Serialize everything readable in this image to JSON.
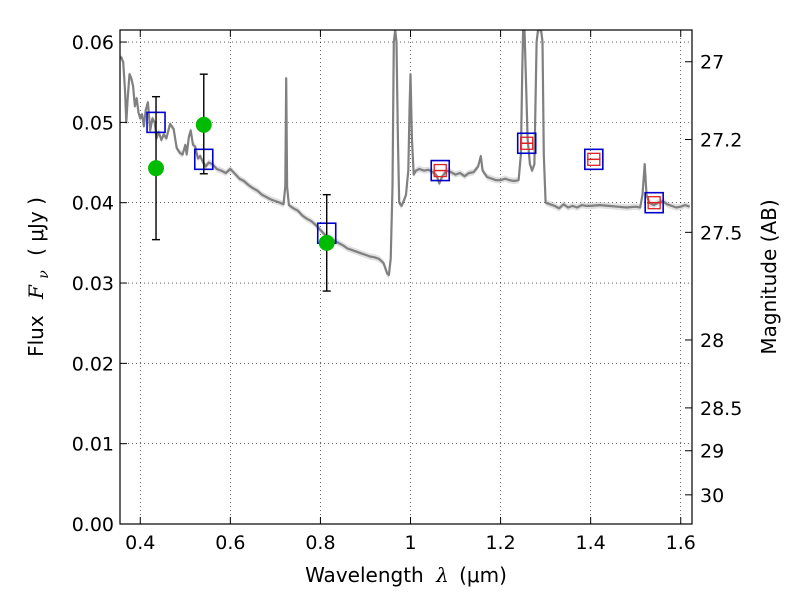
{
  "chart_data": {
    "type": "line",
    "title": "",
    "xlabel_prefix": "Wavelength",
    "xlabel_symbol": "λ",
    "xlabel_unit": "(μm)",
    "ylabel_prefix": "Flux",
    "ylabel_symbol": "F",
    "ylabel_subscript": "ν",
    "ylabel_unit": "( μJy )",
    "y2label": "Magnitude (AB)",
    "xlim": [
      0.355,
      1.625
    ],
    "ylim": [
      0.0,
      0.0615
    ],
    "grid": true,
    "x_ticks": [
      0.4,
      0.6,
      0.8,
      1.0,
      1.2,
      1.4,
      1.6
    ],
    "x_tick_labels": [
      "0.4",
      "0.6",
      "0.8",
      "1",
      "1.2",
      "1.4",
      "1.6"
    ],
    "y_ticks": [
      0.0,
      0.01,
      0.02,
      0.03,
      0.04,
      0.05,
      0.06
    ],
    "y_tick_labels": [
      "0.00",
      "0.01",
      "0.02",
      "0.03",
      "0.04",
      "0.05",
      "0.06"
    ],
    "y2_ticks": [
      27,
      27.2,
      27.5,
      28,
      28.5,
      29,
      30
    ],
    "y2_tick_labels": [
      "27",
      "27.2",
      "27.5",
      "28",
      "28.5",
      "29",
      "30"
    ],
    "colors": {
      "model": "#808080",
      "model_band": "#bbbbbb",
      "model_photometry": "#0000cc",
      "observed_limits": "#dd2222",
      "observed": "#00bb00",
      "errorbar": "#000000"
    },
    "model_spectrum": [
      [
        0.357,
        0.0582
      ],
      [
        0.362,
        0.0575
      ],
      [
        0.366,
        0.054
      ],
      [
        0.369,
        0.05
      ],
      [
        0.372,
        0.053
      ],
      [
        0.376,
        0.056
      ],
      [
        0.38,
        0.0555
      ],
      [
        0.384,
        0.0545
      ],
      [
        0.388,
        0.052
      ],
      [
        0.392,
        0.053
      ],
      [
        0.396,
        0.0512
      ],
      [
        0.4,
        0.0505
      ],
      [
        0.404,
        0.051
      ],
      [
        0.408,
        0.0495
      ],
      [
        0.412,
        0.0515
      ],
      [
        0.417,
        0.0525
      ],
      [
        0.422,
        0.049
      ],
      [
        0.427,
        0.0505
      ],
      [
        0.432,
        0.05
      ],
      [
        0.436,
        0.048
      ],
      [
        0.441,
        0.0488
      ],
      [
        0.447,
        0.0478
      ],
      [
        0.452,
        0.0485
      ],
      [
        0.458,
        0.048
      ],
      [
        0.466,
        0.0498
      ],
      [
        0.474,
        0.0492
      ],
      [
        0.481,
        0.0468
      ],
      [
        0.488,
        0.0462
      ],
      [
        0.494,
        0.046
      ],
      [
        0.5,
        0.0472
      ],
      [
        0.503,
        0.046
      ],
      [
        0.508,
        0.0482
      ],
      [
        0.512,
        0.049
      ],
      [
        0.517,
        0.0472
      ],
      [
        0.522,
        0.047
      ],
      [
        0.528,
        0.0455
      ],
      [
        0.533,
        0.0458
      ],
      [
        0.538,
        0.0452
      ],
      [
        0.545,
        0.0445
      ],
      [
        0.552,
        0.045
      ],
      [
        0.56,
        0.0448
      ],
      [
        0.57,
        0.0442
      ],
      [
        0.58,
        0.044
      ],
      [
        0.59,
        0.0437
      ],
      [
        0.6,
        0.0442
      ],
      [
        0.61,
        0.0436
      ],
      [
        0.62,
        0.043
      ],
      [
        0.63,
        0.0427
      ],
      [
        0.64,
        0.0422
      ],
      [
        0.65,
        0.0418
      ],
      [
        0.66,
        0.0415
      ],
      [
        0.67,
        0.041
      ],
      [
        0.68,
        0.0407
      ],
      [
        0.69,
        0.0404
      ],
      [
        0.7,
        0.0402
      ],
      [
        0.71,
        0.04
      ],
      [
        0.718,
        0.0398
      ],
      [
        0.722,
        0.042
      ],
      [
        0.724,
        0.0555
      ],
      [
        0.726,
        0.042
      ],
      [
        0.73,
        0.0397
      ],
      [
        0.74,
        0.0393
      ],
      [
        0.75,
        0.039
      ],
      [
        0.76,
        0.0384
      ],
      [
        0.77,
        0.038
      ],
      [
        0.78,
        0.0377
      ],
      [
        0.79,
        0.0372
      ],
      [
        0.8,
        0.0366
      ],
      [
        0.81,
        0.036
      ],
      [
        0.82,
        0.0357
      ],
      [
        0.83,
        0.0353
      ],
      [
        0.84,
        0.035
      ],
      [
        0.85,
        0.0347
      ],
      [
        0.86,
        0.0343
      ],
      [
        0.87,
        0.0341
      ],
      [
        0.88,
        0.0339
      ],
      [
        0.89,
        0.0337
      ],
      [
        0.9,
        0.0335
      ],
      [
        0.91,
        0.0333
      ],
      [
        0.92,
        0.0332
      ],
      [
        0.93,
        0.033
      ],
      [
        0.94,
        0.0325
      ],
      [
        0.948,
        0.0312
      ],
      [
        0.952,
        0.031
      ],
      [
        0.956,
        0.033
      ],
      [
        0.96,
        0.042
      ],
      [
        0.963,
        0.06
      ],
      [
        0.966,
        0.0615
      ],
      [
        0.969,
        0.06
      ],
      [
        0.972,
        0.048
      ],
      [
        0.975,
        0.04
      ],
      [
        0.98,
        0.0396
      ],
      [
        0.985,
        0.0402
      ],
      [
        0.99,
        0.041
      ],
      [
        0.995,
        0.044
      ],
      [
        0.998,
        0.052
      ],
      [
        1.0,
        0.056
      ],
      [
        1.003,
        0.048
      ],
      [
        1.007,
        0.0435
      ],
      [
        1.012,
        0.044
      ],
      [
        1.02,
        0.0442
      ],
      [
        1.03,
        0.044
      ],
      [
        1.04,
        0.0441
      ],
      [
        1.05,
        0.0438
      ],
      [
        1.058,
        0.0434
      ],
      [
        1.064,
        0.0424
      ],
      [
        1.07,
        0.0432
      ],
      [
        1.08,
        0.044
      ],
      [
        1.09,
        0.0438
      ],
      [
        1.1,
        0.0435
      ],
      [
        1.11,
        0.0437
      ],
      [
        1.12,
        0.0433
      ],
      [
        1.13,
        0.0437
      ],
      [
        1.14,
        0.0438
      ],
      [
        1.15,
        0.0445
      ],
      [
        1.156,
        0.0458
      ],
      [
        1.16,
        0.044
      ],
      [
        1.17,
        0.0432
      ],
      [
        1.18,
        0.043
      ],
      [
        1.19,
        0.0428
      ],
      [
        1.2,
        0.0428
      ],
      [
        1.21,
        0.043
      ],
      [
        1.22,
        0.0428
      ],
      [
        1.23,
        0.0427
      ],
      [
        1.24,
        0.0428
      ],
      [
        1.245,
        0.046
      ],
      [
        1.248,
        0.056
      ],
      [
        1.25,
        0.0615
      ],
      [
        1.253,
        0.0615
      ],
      [
        1.256,
        0.056
      ],
      [
        1.26,
        0.048
      ],
      [
        1.265,
        0.0448
      ],
      [
        1.27,
        0.044
      ],
      [
        1.275,
        0.0448
      ],
      [
        1.28,
        0.06
      ],
      [
        1.283,
        0.0615
      ],
      [
        1.29,
        0.0615
      ],
      [
        1.293,
        0.06
      ],
      [
        1.296,
        0.046
      ],
      [
        1.3,
        0.04
      ],
      [
        1.31,
        0.0398
      ],
      [
        1.32,
        0.0396
      ],
      [
        1.33,
        0.0393
      ],
      [
        1.34,
        0.0398
      ],
      [
        1.35,
        0.0394
      ],
      [
        1.36,
        0.0396
      ],
      [
        1.37,
        0.0394
      ],
      [
        1.38,
        0.0397
      ],
      [
        1.39,
        0.0396
      ],
      [
        1.4,
        0.0396
      ],
      [
        1.42,
        0.0397
      ],
      [
        1.44,
        0.0396
      ],
      [
        1.46,
        0.0395
      ],
      [
        1.48,
        0.0394
      ],
      [
        1.5,
        0.0395
      ],
      [
        1.51,
        0.0394
      ],
      [
        1.515,
        0.041
      ],
      [
        1.52,
        0.0448
      ],
      [
        1.524,
        0.041
      ],
      [
        1.53,
        0.04
      ],
      [
        1.54,
        0.0397
      ],
      [
        1.55,
        0.04
      ],
      [
        1.56,
        0.0402
      ],
      [
        1.57,
        0.0398
      ],
      [
        1.58,
        0.0396
      ],
      [
        1.59,
        0.0394
      ],
      [
        1.6,
        0.0395
      ],
      [
        1.61,
        0.0397
      ],
      [
        1.62,
        0.0395
      ]
    ],
    "model_photometry": [
      {
        "x": 0.435,
        "y": 0.05
      },
      {
        "x": 0.541,
        "y": 0.0454
      },
      {
        "x": 0.814,
        "y": 0.0362
      },
      {
        "x": 1.066,
        "y": 0.044
      },
      {
        "x": 1.258,
        "y": 0.0474
      },
      {
        "x": 1.407,
        "y": 0.0454
      },
      {
        "x": 1.541,
        "y": 0.04
      }
    ],
    "observed_limits": [
      {
        "x": 1.066,
        "y": 0.044
      },
      {
        "x": 1.258,
        "y": 0.0474
      },
      {
        "x": 1.407,
        "y": 0.0454
      },
      {
        "x": 1.541,
        "y": 0.04
      }
    ],
    "observed": [
      {
        "x": 0.435,
        "y": 0.0443,
        "yerr_low": 0.0354,
        "yerr_high": 0.0532
      },
      {
        "x": 0.541,
        "y": 0.0497,
        "yerr_low": 0.0436,
        "yerr_high": 0.056
      },
      {
        "x": 0.814,
        "y": 0.035,
        "yerr_low": 0.029,
        "yerr_high": 0.041
      }
    ]
  }
}
